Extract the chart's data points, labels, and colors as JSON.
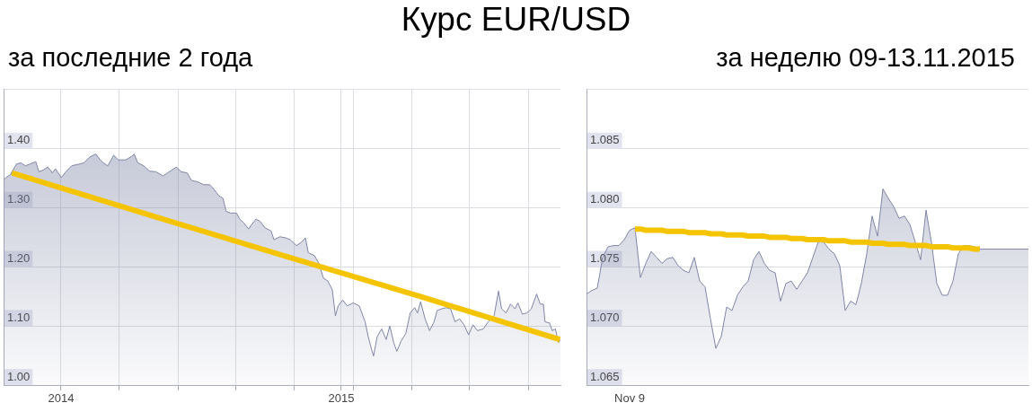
{
  "chart_data": [
    {
      "type": "area",
      "title": "Курс EUR/USD",
      "subtitle": "за последние 2 года",
      "xlim": [
        2013.795,
        2015.782
      ],
      "xticks": [
        2014,
        {
          "value": 2014.208,
          "label": null
        },
        {
          "value": 2014.417,
          "label": null
        },
        {
          "value": 2014.625,
          "label": null
        },
        {
          "value": 2014.833,
          "label": null
        },
        2015,
        {
          "value": 2015.042,
          "label": null
        },
        {
          "value": 2015.25,
          "label": null
        },
        {
          "value": 2015.458,
          "label": null
        },
        {
          "value": 2015.667,
          "label": null
        }
      ],
      "ylim": [
        1.0,
        1.5
      ],
      "yticks": [
        {
          "value": 1.0,
          "label": "1.00"
        },
        {
          "value": 1.1,
          "label": "1.10"
        },
        {
          "value": 1.2,
          "label": "1.20"
        },
        {
          "value": 1.3,
          "label": "1.30"
        },
        {
          "value": 1.4,
          "label": "1.40"
        },
        {
          "value": 1.5,
          "label": null
        }
      ],
      "grid": true,
      "series": [
        {
          "color": "#7f86a6",
          "x": [
            2013.795,
            2013.803,
            2013.819,
            2013.841,
            2013.857,
            2013.873,
            2013.889,
            2013.91,
            2013.921,
            2013.937,
            2013.953,
            2013.969,
            2013.98,
            2014.001,
            2014.017,
            2014.038,
            2014.065,
            2014.081,
            2014.103,
            2014.124,
            2014.14,
            2014.151,
            2014.167,
            2014.188,
            2014.204,
            2014.231,
            2014.252,
            2014.261,
            2014.274,
            2014.295,
            2014.316,
            2014.338,
            2014.364,
            2014.38,
            2014.412,
            2014.428,
            2014.45,
            2014.466,
            2014.487,
            2014.509,
            2014.53,
            2014.541,
            2014.562,
            2014.578,
            2014.589,
            2014.605,
            2014.626,
            2014.637,
            2014.653,
            2014.669,
            2014.679,
            2014.696,
            2014.712,
            2014.728,
            2014.749,
            2014.76,
            2014.781,
            2014.802,
            2014.818,
            2014.84,
            2014.856,
            2014.872,
            2014.882,
            2014.904,
            2014.92,
            2014.936,
            2014.952,
            2014.968,
            2014.979,
            2014.989,
            2015.005,
            2015.021,
            2015.043,
            2015.064,
            2015.085,
            2015.096,
            2015.107,
            2015.115,
            2015.128,
            2015.144,
            2015.16,
            2015.173,
            2015.187,
            2015.198,
            2015.214,
            2015.23,
            2015.246,
            2015.262,
            2015.272,
            2015.283,
            2015.299,
            2015.315,
            2015.331,
            2015.342,
            2015.358,
            2015.374,
            2015.39,
            2015.406,
            2015.422,
            2015.438,
            2015.454,
            2015.47,
            2015.486,
            2015.507,
            2015.524,
            2015.545,
            2015.561,
            2015.572,
            2015.588,
            2015.604,
            2015.62,
            2015.63,
            2015.646,
            2015.662,
            2015.678,
            2015.697,
            2015.71,
            2015.721,
            2015.727,
            2015.743,
            2015.753,
            2015.764,
            2015.775,
            2015.782
          ],
          "values": [
            1.347,
            1.351,
            1.356,
            1.374,
            1.376,
            1.371,
            1.374,
            1.378,
            1.361,
            1.364,
            1.369,
            1.359,
            1.366,
            1.351,
            1.361,
            1.371,
            1.374,
            1.376,
            1.386,
            1.391,
            1.381,
            1.376,
            1.371,
            1.389,
            1.381,
            1.381,
            1.387,
            1.391,
            1.376,
            1.371,
            1.362,
            1.361,
            1.354,
            1.359,
            1.369,
            1.361,
            1.359,
            1.346,
            1.344,
            1.339,
            1.339,
            1.334,
            1.321,
            1.316,
            1.294,
            1.291,
            1.291,
            1.281,
            1.274,
            1.264,
            1.271,
            1.281,
            1.276,
            1.266,
            1.261,
            1.246,
            1.251,
            1.249,
            1.246,
            1.236,
            1.241,
            1.249,
            1.224,
            1.219,
            1.206,
            1.181,
            1.176,
            1.161,
            1.117,
            1.134,
            1.144,
            1.134,
            1.139,
            1.134,
            1.107,
            1.082,
            1.062,
            1.049,
            1.082,
            1.095,
            1.077,
            1.1,
            1.072,
            1.057,
            1.075,
            1.087,
            1.122,
            1.131,
            1.122,
            1.141,
            1.112,
            1.092,
            1.107,
            1.126,
            1.129,
            1.131,
            1.129,
            1.107,
            1.112,
            1.102,
            1.085,
            1.102,
            1.092,
            1.095,
            1.107,
            1.117,
            1.159,
            1.129,
            1.122,
            1.137,
            1.129,
            1.139,
            1.12,
            1.122,
            1.129,
            1.154,
            1.137,
            1.137,
            1.107,
            1.105,
            1.092,
            1.095,
            1.072,
            1.077
          ]
        },
        {
          "type": "line",
          "color": "#f5c400",
          "x": [
            2013.825,
            2014.327,
            2014.808,
            2015.288,
            2015.78
          ],
          "values": [
            1.359,
            1.286,
            1.217,
            1.149,
            1.077
          ]
        }
      ]
    },
    {
      "type": "area",
      "subtitle": "за неделю 09-13.11.2015",
      "categories": [
        null,
        null,
        null,
        null,
        null,
        null,
        null,
        null,
        "Nov 9",
        null,
        null,
        null,
        null,
        null,
        null,
        null,
        null,
        null,
        null,
        null,
        null,
        null,
        null,
        null,
        null,
        null,
        null,
        null,
        null,
        null,
        null,
        null,
        null,
        null,
        null,
        null,
        null,
        null,
        null,
        null,
        null,
        null,
        null,
        null,
        null,
        null,
        null,
        null,
        null,
        null,
        null,
        null,
        null,
        null,
        null,
        null,
        null,
        null,
        null,
        null,
        null,
        null,
        null,
        null,
        null,
        null,
        null,
        null,
        null,
        null,
        null,
        null,
        null,
        null,
        null,
        null,
        null,
        null,
        null,
        null,
        null,
        null,
        null
      ],
      "ylim": [
        1.065,
        1.09
      ],
      "yticks": [
        1.065,
        {
          "value": 1.07,
          "label": "1.070"
        },
        1.075,
        {
          "value": 1.08,
          "label": "1.080"
        },
        1.085,
        {
          "value": 1.09,
          "label": null
        }
      ],
      "grid": "y",
      "series": [
        {
          "color": "#7f86a6",
          "values": [
            1.0727,
            1.073,
            1.0732,
            1.0758,
            1.0767,
            1.0768,
            1.0768,
            1.0773,
            1.0781,
            1.0783,
            1.0741,
            1.0753,
            1.0763,
            1.0758,
            1.0753,
            1.0757,
            1.0758,
            1.0751,
            1.0747,
            1.0745,
            1.0758,
            1.0738,
            1.0733,
            1.0706,
            1.0681,
            1.0691,
            1.0716,
            1.0713,
            1.0726,
            1.0733,
            1.0738,
            1.0756,
            1.0763,
            1.0753,
            1.0747,
            1.0745,
            1.0721,
            1.0736,
            1.0738,
            1.0731,
            1.0738,
            1.0745,
            1.0758,
            1.0771,
            1.0771,
            1.0765,
            1.0761,
            1.0751,
            1.0713,
            1.0721,
            1.0718,
            1.0736,
            1.0761,
            1.0793,
            1.0776,
            1.0816,
            1.0808,
            1.0801,
            1.0791,
            1.0793,
            1.0786,
            1.0771,
            1.0756,
            1.0798,
            1.0771,
            1.0736,
            1.0726,
            1.0726,
            1.0738,
            1.0761,
            1.0768,
            1.0768,
            1.0767,
            1.0765,
            1.0765,
            1.0765,
            1.0765,
            1.0765,
            1.0765,
            1.0765,
            1.0765,
            1.0765,
            1.0765
          ]
        },
        {
          "type": "line",
          "color": "#f5c400",
          "values": [
            null,
            null,
            null,
            null,
            null,
            null,
            null,
            null,
            null,
            1.0782,
            1.0782,
            1.0781,
            1.0781,
            1.0781,
            1.0781,
            1.078,
            1.078,
            1.078,
            1.078,
            1.0779,
            1.0779,
            1.0779,
            1.0779,
            1.0778,
            1.0778,
            1.0778,
            1.0777,
            1.0777,
            1.0777,
            1.0777,
            1.0776,
            1.0776,
            1.0776,
            1.0776,
            1.0775,
            1.0775,
            1.0775,
            1.0775,
            1.0774,
            1.0774,
            1.0774,
            1.0773,
            1.0773,
            1.0773,
            1.0773,
            1.0772,
            1.0772,
            1.0772,
            1.0772,
            1.0771,
            1.0771,
            1.0771,
            1.0771,
            1.077,
            1.077,
            1.077,
            1.0769,
            1.0769,
            1.0769,
            1.0769,
            1.0768,
            1.0768,
            1.0768,
            1.0768,
            1.0767,
            1.0767,
            1.0767,
            1.0767,
            1.0766,
            1.0766,
            1.0766,
            1.0766,
            1.0765,
            1.0765,
            null,
            null,
            null,
            null,
            null,
            null,
            null,
            null,
            null
          ]
        }
      ]
    }
  ]
}
